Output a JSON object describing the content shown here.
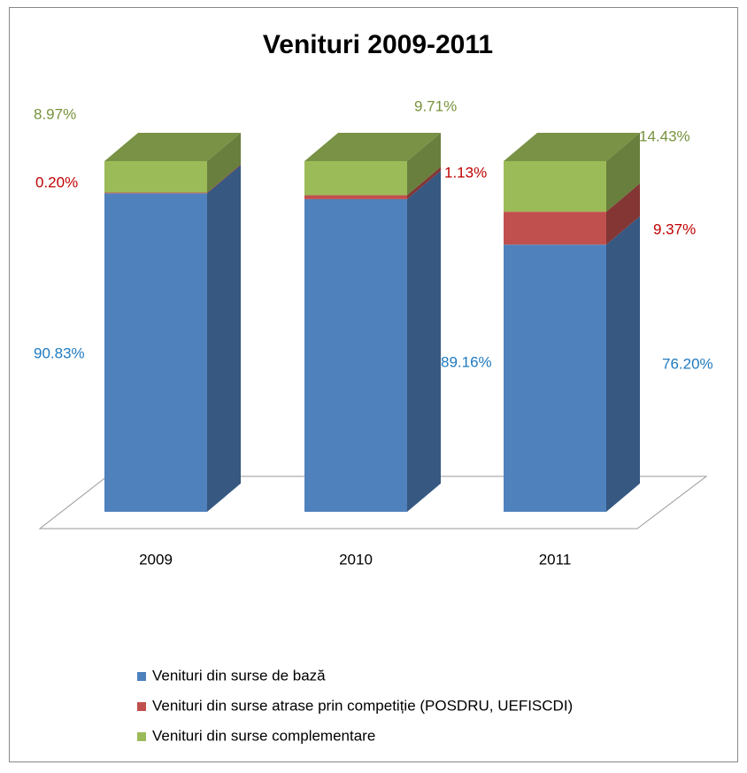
{
  "chart_data": {
    "type": "bar3d_stacked",
    "title": "Venituri 2009-2011",
    "categories": [
      "2009",
      "2010",
      "2011"
    ],
    "series": [
      {
        "name": "Venituri din surse de bază",
        "color": "#4f81bd",
        "values": [
          90.83,
          89.16,
          76.2
        ],
        "value_labels": [
          "90.83%",
          "89.16%",
          "76.20%"
        ],
        "label_color": "#1f7ac0"
      },
      {
        "name": "Venituri din surse atrase prin competiție (POSDRU, UEFISCDI)",
        "color": "#c0504d",
        "values": [
          0.2,
          1.13,
          9.37
        ],
        "value_labels": [
          "0.20%",
          "1.13%",
          "9.37%"
        ],
        "label_color": "#c00000"
      },
      {
        "name": "Venituri din surse complementare",
        "color": "#9bbb59",
        "values": [
          8.97,
          9.71,
          14.43
        ],
        "value_labels": [
          "8.97%",
          "9.71%",
          "14.43%"
        ],
        "label_color": "#77933c"
      }
    ]
  }
}
